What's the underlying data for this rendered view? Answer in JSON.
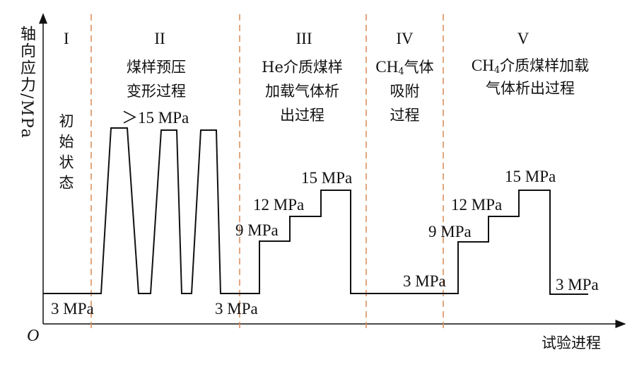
{
  "axes": {
    "ylabel": "轴向应力/MPa",
    "xlabel": "试验进程",
    "origin": "O"
  },
  "colors": {
    "boundary": "#d98a55",
    "curve": "#111111"
  },
  "stages": [
    {
      "numeral": "I",
      "desc": "初始状态"
    },
    {
      "numeral": "II",
      "desc_line1": "煤样预压",
      "desc_line2": "变形过程",
      "note": "＞15 MPa"
    },
    {
      "numeral": "III",
      "desc_line1": "He介质煤样",
      "desc_line2": "加载气体析",
      "desc_line3": "出过程"
    },
    {
      "numeral": "IV",
      "desc_line1_pre": "CH",
      "desc_line1_sub": "4",
      "desc_line1_post": "气体",
      "desc_line2": "吸附",
      "desc_line3": "过程"
    },
    {
      "numeral": "V",
      "desc_line1_pre": "CH",
      "desc_line1_sub": "4",
      "desc_line1_post": "介质煤样加载",
      "desc_line2": "气体析出过程"
    }
  ],
  "stress_labels": {
    "s1_3": "3 MPa",
    "s2_3": "3 MPa",
    "s3_9": "9 MPa",
    "s3_12": "12 MPa",
    "s3_15": "15 MPa",
    "s4_3": "3 MPa",
    "s5_9": "9 MPa",
    "s5_12": "12 MPa",
    "s5_15": "15 MPa",
    "s5_3": "3 MPa"
  }
}
